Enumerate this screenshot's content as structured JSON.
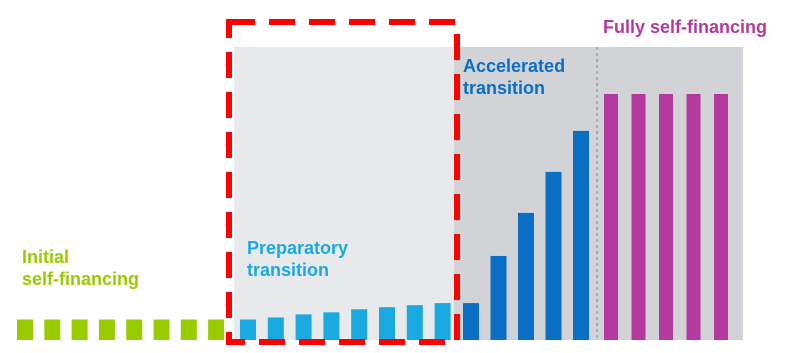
{
  "phases": [
    {
      "key": "initial",
      "label_lines": [
        "Initial",
        "self-financing"
      ],
      "color": "#99CC00"
    },
    {
      "key": "prep",
      "label_lines": [
        "Preparatory",
        "transition"
      ],
      "color": "#1AA9E0"
    },
    {
      "key": "accel",
      "label_lines": [
        "Accelerated",
        "transition"
      ],
      "color": "#0A6FC4"
    },
    {
      "key": "fully",
      "label_lines": [
        "Fully self-financing"
      ],
      "color": "#B3399F"
    }
  ],
  "colors": {
    "initial": "#99CC00",
    "prep": "#1AA9E0",
    "accel": "#0A6FC4",
    "fully": "#B3399F",
    "prep_bg": "#E8E9EA",
    "accel_bg": "#D2D3D6",
    "fully_bg": "#D2D3D6",
    "highlight": "#FF0000"
  },
  "chart_data": {
    "type": "bar",
    "series": [
      {
        "phase": "initial",
        "values": [
          1,
          1,
          1,
          1,
          1,
          1,
          1,
          1
        ]
      },
      {
        "phase": "prep",
        "values": [
          1,
          1.1,
          1.25,
          1.35,
          1.5,
          1.6,
          1.7,
          1.8
        ]
      },
      {
        "phase": "accel",
        "values": [
          1.8,
          4.1,
          6.2,
          8.2,
          10.2
        ]
      },
      {
        "phase": "fully",
        "values": [
          12,
          12,
          12,
          12,
          12
        ]
      }
    ]
  }
}
